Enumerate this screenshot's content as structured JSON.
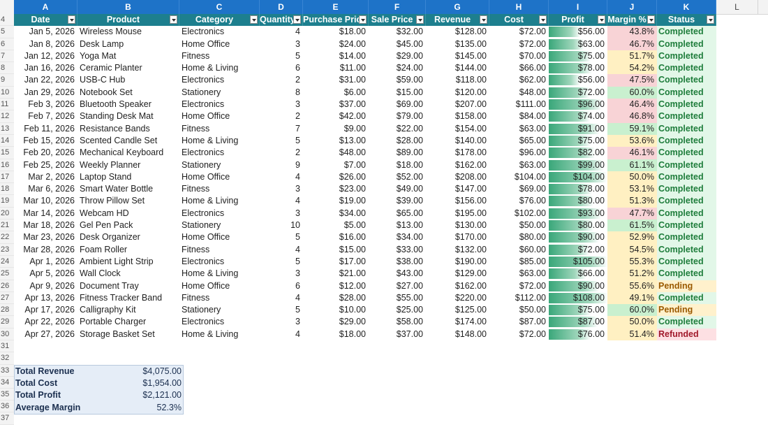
{
  "columns": [
    "A",
    "B",
    "C",
    "D",
    "E",
    "F",
    "G",
    "H",
    "I",
    "J",
    "K",
    "L"
  ],
  "headers": [
    "Date",
    "Product",
    "Category",
    "Quantity",
    "Purchase Price",
    "Sale Price",
    "Revenue",
    "Cost",
    "Profit",
    "Margin %",
    "Status"
  ],
  "row_numbers": [
    "4",
    "5",
    "6",
    "7",
    "8",
    "9",
    "10",
    "11",
    "12",
    "13",
    "14",
    "15",
    "16",
    "17",
    "18",
    "19",
    "20",
    "21",
    "22",
    "23",
    "24",
    "25",
    "26",
    "27",
    "28",
    "29",
    "30",
    "31",
    "32",
    "33",
    "34",
    "35",
    "36",
    "37"
  ],
  "rows": [
    {
      "date": "Jan 5, 2026",
      "product": "Wireless Mouse",
      "category": "Electronics",
      "qty": "4",
      "pp": "$18.00",
      "sp": "$32.00",
      "rev": "$128.00",
      "cost": "$72.00",
      "profit": "$56.00",
      "margin": "43.8%",
      "status": "Completed",
      "bar": 0.53
    },
    {
      "date": "Jan 8, 2026",
      "product": "Desk Lamp",
      "category": "Home Office",
      "qty": "3",
      "pp": "$24.00",
      "sp": "$45.00",
      "rev": "$135.00",
      "cost": "$72.00",
      "profit": "$63.00",
      "margin": "46.7%",
      "status": "Completed",
      "bar": 0.6
    },
    {
      "date": "Jan 12, 2026",
      "product": "Yoga Mat",
      "category": "Fitness",
      "qty": "5",
      "pp": "$14.00",
      "sp": "$29.00",
      "rev": "$145.00",
      "cost": "$70.00",
      "profit": "$75.00",
      "margin": "51.7%",
      "status": "Completed",
      "bar": 0.71
    },
    {
      "date": "Jan 16, 2026",
      "product": "Ceramic Planter",
      "category": "Home & Living",
      "qty": "6",
      "pp": "$11.00",
      "sp": "$24.00",
      "rev": "$144.00",
      "cost": "$66.00",
      "profit": "$78.00",
      "margin": "54.2%",
      "status": "Completed",
      "bar": 0.74
    },
    {
      "date": "Jan 22, 2026",
      "product": "USB-C Hub",
      "category": "Electronics",
      "qty": "2",
      "pp": "$31.00",
      "sp": "$59.00",
      "rev": "$118.00",
      "cost": "$62.00",
      "profit": "$56.00",
      "margin": "47.5%",
      "status": "Completed",
      "bar": 0.53
    },
    {
      "date": "Jan 29, 2026",
      "product": "Notebook Set",
      "category": "Stationery",
      "qty": "8",
      "pp": "$6.00",
      "sp": "$15.00",
      "rev": "$120.00",
      "cost": "$48.00",
      "profit": "$72.00",
      "margin": "60.0%",
      "status": "Completed",
      "bar": 0.69
    },
    {
      "date": "Feb 3, 2026",
      "product": "Bluetooth Speaker",
      "category": "Electronics",
      "qty": "3",
      "pp": "$37.00",
      "sp": "$69.00",
      "rev": "$207.00",
      "cost": "$111.00",
      "profit": "$96.00",
      "margin": "46.4%",
      "status": "Completed",
      "bar": 0.91
    },
    {
      "date": "Feb 7, 2026",
      "product": "Standing Desk Mat",
      "category": "Home Office",
      "qty": "2",
      "pp": "$42.00",
      "sp": "$79.00",
      "rev": "$158.00",
      "cost": "$84.00",
      "profit": "$74.00",
      "margin": "46.8%",
      "status": "Completed",
      "bar": 0.7
    },
    {
      "date": "Feb 11, 2026",
      "product": "Resistance Bands",
      "category": "Fitness",
      "qty": "7",
      "pp": "$9.00",
      "sp": "$22.00",
      "rev": "$154.00",
      "cost": "$63.00",
      "profit": "$91.00",
      "margin": "59.1%",
      "status": "Completed",
      "bar": 0.87
    },
    {
      "date": "Feb 15, 2026",
      "product": "Scented Candle Set",
      "category": "Home & Living",
      "qty": "5",
      "pp": "$13.00",
      "sp": "$28.00",
      "rev": "$140.00",
      "cost": "$65.00",
      "profit": "$75.00",
      "margin": "53.6%",
      "status": "Completed",
      "bar": 0.71
    },
    {
      "date": "Feb 20, 2026",
      "product": "Mechanical Keyboard",
      "category": "Electronics",
      "qty": "2",
      "pp": "$48.00",
      "sp": "$89.00",
      "rev": "$178.00",
      "cost": "$96.00",
      "profit": "$82.00",
      "margin": "46.1%",
      "status": "Completed",
      "bar": 0.78
    },
    {
      "date": "Feb 25, 2026",
      "product": "Weekly Planner",
      "category": "Stationery",
      "qty": "9",
      "pp": "$7.00",
      "sp": "$18.00",
      "rev": "$162.00",
      "cost": "$63.00",
      "profit": "$99.00",
      "margin": "61.1%",
      "status": "Completed",
      "bar": 0.94
    },
    {
      "date": "Mar 2, 2026",
      "product": "Laptop Stand",
      "category": "Home Office",
      "qty": "4",
      "pp": "$26.00",
      "sp": "$52.00",
      "rev": "$208.00",
      "cost": "$104.00",
      "profit": "$104.00",
      "margin": "50.0%",
      "status": "Completed",
      "bar": 0.99
    },
    {
      "date": "Mar 6, 2026",
      "product": "Smart Water Bottle",
      "category": "Fitness",
      "qty": "3",
      "pp": "$23.00",
      "sp": "$49.00",
      "rev": "$147.00",
      "cost": "$69.00",
      "profit": "$78.00",
      "margin": "53.1%",
      "status": "Completed",
      "bar": 0.74
    },
    {
      "date": "Mar 10, 2026",
      "product": "Throw Pillow Set",
      "category": "Home & Living",
      "qty": "4",
      "pp": "$19.00",
      "sp": "$39.00",
      "rev": "$156.00",
      "cost": "$76.00",
      "profit": "$80.00",
      "margin": "51.3%",
      "status": "Completed",
      "bar": 0.76
    },
    {
      "date": "Mar 14, 2026",
      "product": "Webcam HD",
      "category": "Electronics",
      "qty": "3",
      "pp": "$34.00",
      "sp": "$65.00",
      "rev": "$195.00",
      "cost": "$102.00",
      "profit": "$93.00",
      "margin": "47.7%",
      "status": "Completed",
      "bar": 0.89
    },
    {
      "date": "Mar 18, 2026",
      "product": "Gel Pen Pack",
      "category": "Stationery",
      "qty": "10",
      "pp": "$5.00",
      "sp": "$13.00",
      "rev": "$130.00",
      "cost": "$50.00",
      "profit": "$80.00",
      "margin": "61.5%",
      "status": "Completed",
      "bar": 0.76
    },
    {
      "date": "Mar 23, 2026",
      "product": "Desk Organizer",
      "category": "Home Office",
      "qty": "5",
      "pp": "$16.00",
      "sp": "$34.00",
      "rev": "$170.00",
      "cost": "$80.00",
      "profit": "$90.00",
      "margin": "52.9%",
      "status": "Completed",
      "bar": 0.86
    },
    {
      "date": "Mar 28, 2026",
      "product": "Foam Roller",
      "category": "Fitness",
      "qty": "4",
      "pp": "$15.00",
      "sp": "$33.00",
      "rev": "$132.00",
      "cost": "$60.00",
      "profit": "$72.00",
      "margin": "54.5%",
      "status": "Completed",
      "bar": 0.69
    },
    {
      "date": "Apr 1, 2026",
      "product": "Ambient Light Strip",
      "category": "Electronics",
      "qty": "5",
      "pp": "$17.00",
      "sp": "$38.00",
      "rev": "$190.00",
      "cost": "$85.00",
      "profit": "$105.00",
      "margin": "55.3%",
      "status": "Completed",
      "bar": 1.0
    },
    {
      "date": "Apr 5, 2026",
      "product": "Wall Clock",
      "category": "Home & Living",
      "qty": "3",
      "pp": "$21.00",
      "sp": "$43.00",
      "rev": "$129.00",
      "cost": "$63.00",
      "profit": "$66.00",
      "margin": "51.2%",
      "status": "Completed",
      "bar": 0.63
    },
    {
      "date": "Apr 9, 2026",
      "product": "Document Tray",
      "category": "Home Office",
      "qty": "6",
      "pp": "$12.00",
      "sp": "$27.00",
      "rev": "$162.00",
      "cost": "$72.00",
      "profit": "$90.00",
      "margin": "55.6%",
      "status": "Pending",
      "bar": 0.86
    },
    {
      "date": "Apr 13, 2026",
      "product": "Fitness Tracker Band",
      "category": "Fitness",
      "qty": "4",
      "pp": "$28.00",
      "sp": "$55.00",
      "rev": "$220.00",
      "cost": "$112.00",
      "profit": "$108.00",
      "margin": "49.1%",
      "status": "Completed",
      "bar": 1.0
    },
    {
      "date": "Apr 17, 2026",
      "product": "Calligraphy Kit",
      "category": "Stationery",
      "qty": "5",
      "pp": "$10.00",
      "sp": "$25.00",
      "rev": "$125.00",
      "cost": "$50.00",
      "profit": "$75.00",
      "margin": "60.0%",
      "status": "Pending",
      "bar": 0.71
    },
    {
      "date": "Apr 22, 2026",
      "product": "Portable Charger",
      "category": "Electronics",
      "qty": "3",
      "pp": "$29.00",
      "sp": "$58.00",
      "rev": "$174.00",
      "cost": "$87.00",
      "profit": "$87.00",
      "margin": "50.0%",
      "status": "Completed",
      "bar": 0.83
    },
    {
      "date": "Apr 27, 2026",
      "product": "Storage Basket Set",
      "category": "Home & Living",
      "qty": "4",
      "pp": "$18.00",
      "sp": "$37.00",
      "rev": "$148.00",
      "cost": "$72.00",
      "profit": "$76.00",
      "margin": "51.4%",
      "status": "Refunded",
      "bar": 0.72
    }
  ],
  "summary": [
    {
      "label": "Total Revenue",
      "value": "$4,075.00"
    },
    {
      "label": "Total Cost",
      "value": "$1,954.00"
    },
    {
      "label": "Total Profit",
      "value": "$2,121.00"
    },
    {
      "label": "Average Margin",
      "value": "52.3%"
    }
  ],
  "colors": {
    "header_bg": "#1d7f8e",
    "column_letters_bg": "#1e73c8",
    "completed_bg": "#e2f7e8",
    "completed_fg": "#1e7d3b",
    "pending_bg": "#fff1cc",
    "pending_fg": "#9a5a00",
    "refunded_bg": "#fde0e3",
    "refunded_fg": "#a0182a",
    "margin_low": "#f8d3d6",
    "margin_mid": "#fff0c2",
    "margin_high": "#c9f0cf"
  }
}
